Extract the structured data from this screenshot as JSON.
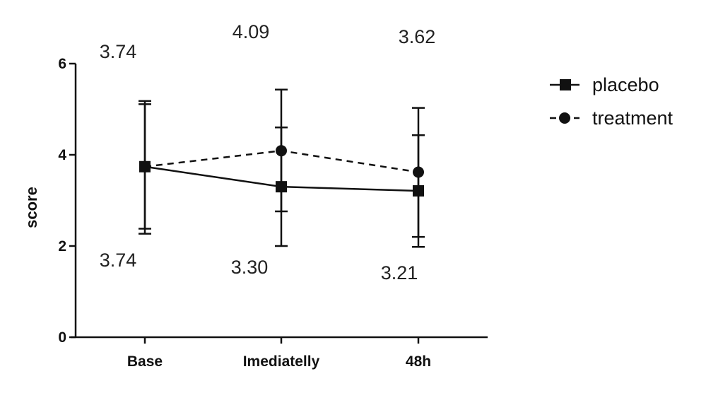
{
  "chart_data": {
    "type": "line",
    "title": "",
    "xlabel": "",
    "ylabel": "score",
    "ylim": [
      0,
      6
    ],
    "yticks": [
      "0",
      "2",
      "4",
      "6"
    ],
    "categories": [
      "Base",
      "Imediatelly",
      "48h"
    ],
    "legend_position": "right",
    "grid": false,
    "series": [
      {
        "name": "placebo",
        "marker": "square",
        "line_style": "solid",
        "values": [
          3.74,
          3.3,
          3.21
        ],
        "error_low": [
          2.27,
          2.76,
          2.2
        ],
        "error_high": [
          5.18,
          4.6,
          4.43
        ],
        "labels": [
          "3.74",
          "3.30",
          "3.21"
        ]
      },
      {
        "name": "treatment",
        "marker": "circle",
        "line_style": "dashed",
        "values": [
          3.74,
          4.09,
          3.62
        ],
        "error_low": [
          2.38,
          2.0,
          1.98
        ],
        "error_high": [
          5.11,
          5.43,
          5.03
        ],
        "labels": [
          "3.74",
          "4.09",
          "3.62"
        ]
      }
    ]
  }
}
